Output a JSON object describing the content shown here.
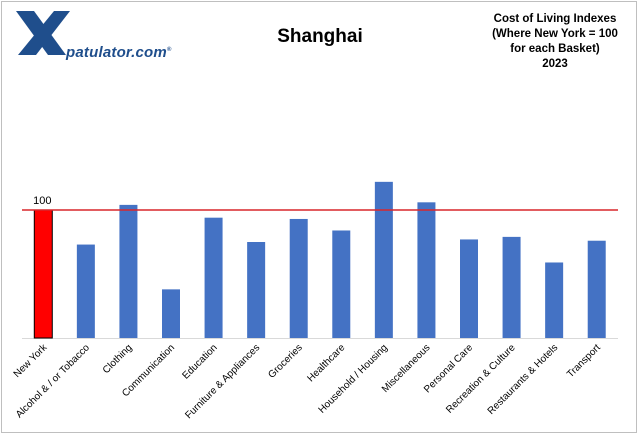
{
  "brand": {
    "mark": "X",
    "name": "patulator.com",
    "registered": "®",
    "colors": {
      "blue": "#1f4e8c"
    }
  },
  "colors": {
    "bar": "#4472c4",
    "highlight_bar": "#ff0000",
    "reference_line": "#d9262c"
  },
  "chart_data": {
    "type": "bar",
    "title": "Shanghai",
    "subtitle_lines": [
      "Cost of Living Indexes",
      "(Where New York = 100",
      "for each Basket)",
      "2023"
    ],
    "categories": [
      "New York",
      "Alcohol & / or Tobacco",
      "Clothing",
      "Communication",
      "Education",
      "Furniture & Appliances",
      "Groceries",
      "Healthcare",
      "Household / Housing",
      "Miscellaneous",
      "Personal Care",
      "Recreation & Culture",
      "Restaurants & Hotels",
      "Transport"
    ],
    "values": [
      100,
      73,
      104,
      38,
      94,
      75,
      93,
      84,
      122,
      106,
      77,
      79,
      59,
      76
    ],
    "highlight_index": 0,
    "data_labels": [
      {
        "index": 0,
        "text": "100"
      }
    ],
    "reference_line": 100,
    "ylim": [
      0,
      130
    ],
    "xlabel": "",
    "ylabel": "",
    "grid": false,
    "legend": "none"
  }
}
